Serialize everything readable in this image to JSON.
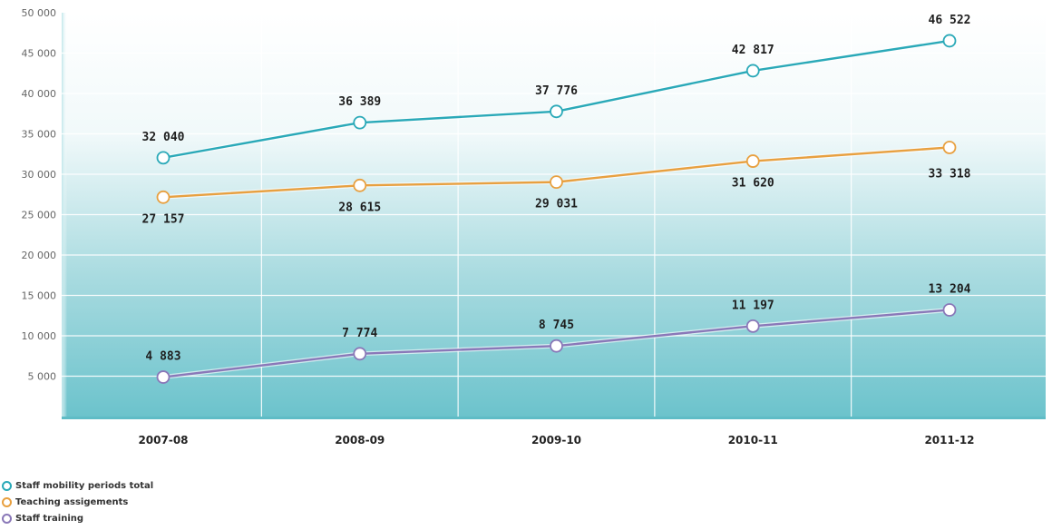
{
  "chart_data": {
    "type": "line",
    "title": "",
    "xlabel": "",
    "ylabel": "",
    "ylim": [
      0,
      50000
    ],
    "yticks": [
      5000,
      10000,
      15000,
      20000,
      25000,
      30000,
      35000,
      40000,
      45000,
      50000
    ],
    "ytick_labels": [
      "5 000",
      "10 000",
      "15 000",
      "20 000",
      "25 000",
      "30 000",
      "35 000",
      "40 000",
      "45 000",
      "50 000"
    ],
    "categories": [
      "2007-08",
      "2008-09",
      "2009-10",
      "2010-11",
      "2011-12"
    ],
    "grid": true,
    "legend_position": "bottom-left",
    "series": [
      {
        "name": "Staff mobility periods total",
        "color": "#2aa9b8",
        "values": [
          32040,
          36389,
          37776,
          42817,
          46522
        ],
        "labels": [
          "32 040",
          "36 389",
          "37 776",
          "42 817",
          "46 522"
        ],
        "label_position": [
          "above",
          "above",
          "above",
          "above",
          "above"
        ]
      },
      {
        "name": "Teaching assigements",
        "color": "#e8a040",
        "values": [
          27157,
          28615,
          29031,
          31620,
          33318
        ],
        "labels": [
          "27 157",
          "28 615",
          "29 031",
          "31 620",
          "33 318"
        ],
        "label_position": [
          "below",
          "below",
          "below",
          "below",
          "right"
        ]
      },
      {
        "name": "Staff training",
        "color": "#8a78b8",
        "values": [
          4883,
          7774,
          8745,
          11197,
          13204
        ],
        "labels": [
          "4 883",
          "7 774",
          "8 745",
          "11 197",
          "13 204"
        ],
        "label_position": [
          "above",
          "above",
          "above",
          "above",
          "above"
        ]
      }
    ]
  }
}
